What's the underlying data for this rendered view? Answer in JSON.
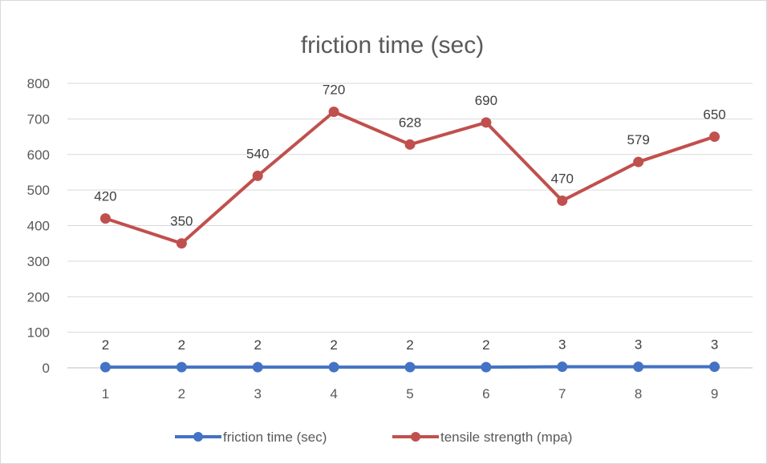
{
  "chart_data": {
    "type": "line",
    "title": "friction time (sec)",
    "xlabel": "",
    "ylabel": "",
    "categories": [
      "1",
      "2",
      "3",
      "4",
      "5",
      "6",
      "7",
      "8",
      "9"
    ],
    "ylim": [
      0,
      800
    ],
    "yticks": [
      0,
      100,
      200,
      300,
      400,
      500,
      600,
      700,
      800
    ],
    "grid": true,
    "legend_position": "bottom",
    "series": [
      {
        "name": "friction time (sec)",
        "color": "#4472c4",
        "values": [
          2,
          2,
          2,
          2,
          2,
          2,
          3,
          3,
          3
        ]
      },
      {
        "name": "tensile strength (mpa)",
        "color": "#c0504d",
        "values": [
          420,
          350,
          540,
          720,
          628,
          690,
          470,
          579,
          650
        ]
      }
    ]
  }
}
